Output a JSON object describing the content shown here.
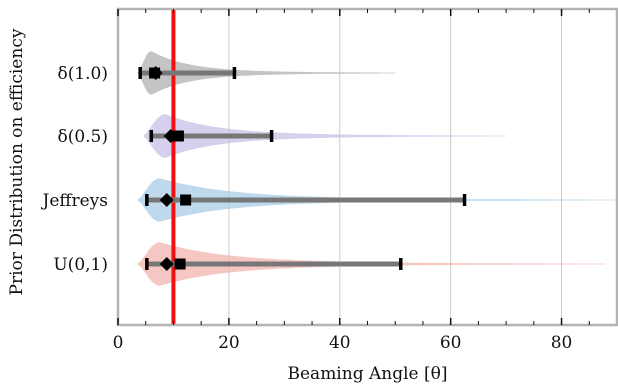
{
  "chart_data": {
    "type": "violin",
    "xlabel": "Beaming Angle [θ]",
    "ylabel": "Prior Distribution on efficiency",
    "xlim": [
      0,
      90
    ],
    "xticks": [
      0,
      20,
      40,
      60,
      80
    ],
    "xtick_labels": [
      "0",
      "20",
      "40",
      "60",
      "80"
    ],
    "grid": "vertical",
    "reference_line": {
      "x": 10,
      "color": "#ee1111"
    },
    "categories": [
      "δ(1.0)",
      "δ(0.5)",
      "Jeffreys",
      "U(0,1)"
    ],
    "series": [
      {
        "label": "δ(1.0)",
        "color": "#b0b0b0",
        "median": 6.8,
        "mean": 6.6,
        "whisker_low": 4.0,
        "whisker_high": 21.0,
        "dist_min": 3.5,
        "dist_max": 50,
        "mode": 6.0
      },
      {
        "label": "δ(0.5)",
        "color": "#c8c0e8",
        "median": 9.5,
        "mean": 10.9,
        "whisker_low": 6.0,
        "whisker_high": 27.7,
        "dist_min": 4.5,
        "dist_max": 70,
        "mode": 8.5
      },
      {
        "label": "Jeffreys",
        "color": "#a8cce4",
        "median": 8.8,
        "mean": 12.2,
        "whisker_low": 5.2,
        "whisker_high": 62.5,
        "dist_min": 3.5,
        "dist_max": 90,
        "mode": 7.5
      },
      {
        "label": "U(0,1)",
        "color": "#f2b4ae",
        "median": 8.8,
        "mean": 11.2,
        "whisker_low": 5.2,
        "whisker_high": 51.0,
        "dist_min": 3.5,
        "dist_max": 88,
        "mode": 7.5
      }
    ]
  }
}
